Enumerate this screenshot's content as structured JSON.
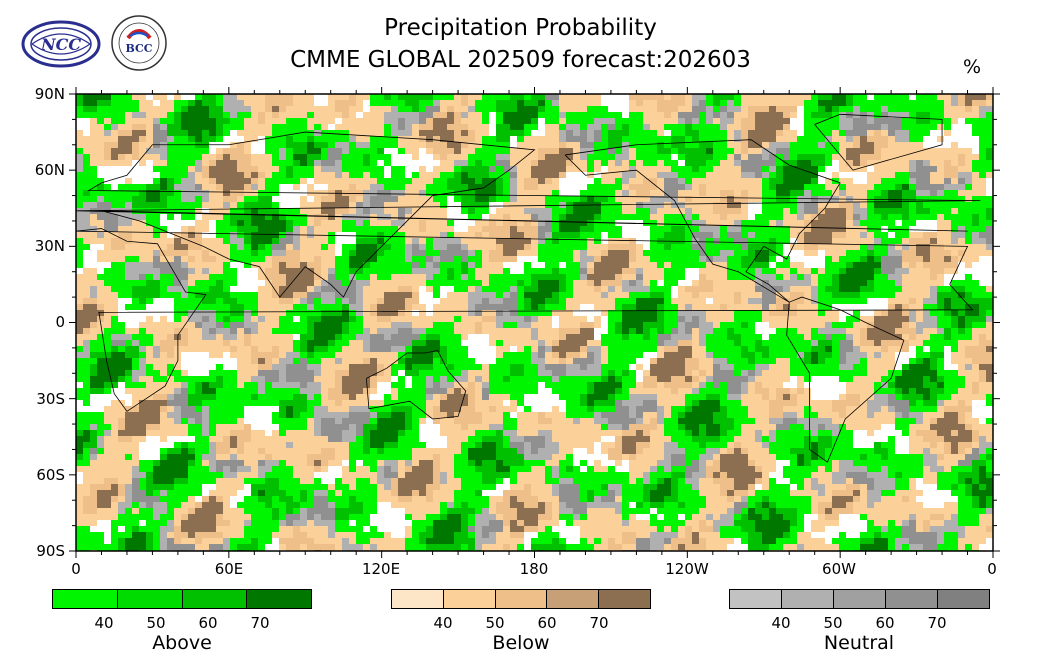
{
  "title_line1": "Precipitation Probability",
  "title_line2": "CMME GLOBAL 202509 forecast:202603",
  "unit": "%",
  "logos": {
    "left": {
      "icon": "ncc-logo",
      "text": "NCC"
    },
    "right": {
      "icon": "bcc-logo",
      "text": "BCC"
    }
  },
  "map": {
    "lat_labels": [
      "90N",
      "60N",
      "30N",
      "0",
      "30S",
      "60S",
      "90S"
    ],
    "lon_labels": [
      "0",
      "60E",
      "120E",
      "180",
      "120W",
      "60W",
      "0"
    ],
    "lat_range": [
      -90,
      90
    ],
    "lon_range": [
      0,
      360
    ]
  },
  "colorbars": [
    {
      "title": "Above",
      "ticks": [
        "40",
        "50",
        "60",
        "70"
      ],
      "colors": [
        "#00f500",
        "#00dc00",
        "#00c000",
        "#007800"
      ]
    },
    {
      "title": "Below",
      "ticks": [
        "40",
        "50",
        "60",
        "70"
      ],
      "colors": [
        "#fde6c8",
        "#fcd099",
        "#efbf8a",
        "#c8a078",
        "#8c6e50"
      ]
    },
    {
      "title": "Neutral",
      "ticks": [
        "40",
        "50",
        "60",
        "70"
      ],
      "colors": [
        "#c2c2c2",
        "#b0b0b0",
        "#a0a0a0",
        "#909090",
        "#808080"
      ]
    }
  ]
}
